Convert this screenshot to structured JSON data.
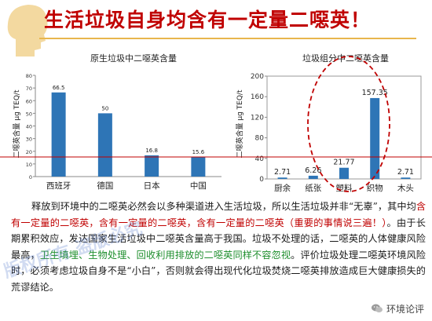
{
  "title": "生活垃圾自身均含有一定量二噁英！",
  "chart_data": [
    {
      "type": "bar",
      "title": "原生垃圾中二噁英含量",
      "ylabel": "二噁英含量 μg TEQ/t",
      "categories": [
        "西班牙",
        "德国",
        "日本",
        "中国"
      ],
      "values": [
        66.5,
        50,
        16.8,
        15.6
      ],
      "value_labels": [
        "66.5",
        "50",
        "16.8",
        "15.6"
      ],
      "ylim": [
        0,
        80
      ],
      "yticks": [
        "0",
        "10",
        "20",
        "30",
        "40",
        "50",
        "60",
        "70",
        "80"
      ],
      "color": "#2e75b6",
      "grid": false
    },
    {
      "type": "bar",
      "title": "垃圾组分中二噁英含量",
      "ylabel": "二噁英含量 μg TEQ/t",
      "categories": [
        "厨余",
        "纸张",
        "塑料",
        "织物",
        "木头"
      ],
      "values": [
        2.71,
        6.26,
        21.77,
        157.35,
        2.71
      ],
      "value_labels": [
        "2.71",
        "6.26",
        "21.77",
        "157.35",
        "2.71"
      ],
      "ylim": [
        0,
        200
      ],
      "yticks": [
        "0",
        "40",
        "80",
        "120",
        "160",
        "200"
      ],
      "color": "#2e75b6",
      "grid": false
    }
  ],
  "paragraph": {
    "p1": "释放到环境中的二噁英必然会以多种渠道进入生活垃圾，所以生活垃圾并非“无辜”，其中均",
    "p2": "含有一定量的二噁英，含有一定量的二噁英，含有一定量的二噁英（重要的事情说三遍！）",
    "p3": "。由于长期累积效应，发达国家生活垃圾中二噁英含量高于我国。垃圾不处理的话，二噁英的人体健康风险最高，",
    "p4": "卫生填埋、生物处理、回收利用排放的二噁英同样不容忽视",
    "p5": "。评价垃圾处理二噁英环境风险时，必须考虑垃圾自身不是“小白”，否则就会得出现代化垃圾焚烧二噁英排放造成巨大健康损失的荒谬结论。"
  },
  "watermark": "版权所有 盗版必究",
  "logo": {
    "text": "环境论评",
    "icon": "wechat-icon"
  }
}
